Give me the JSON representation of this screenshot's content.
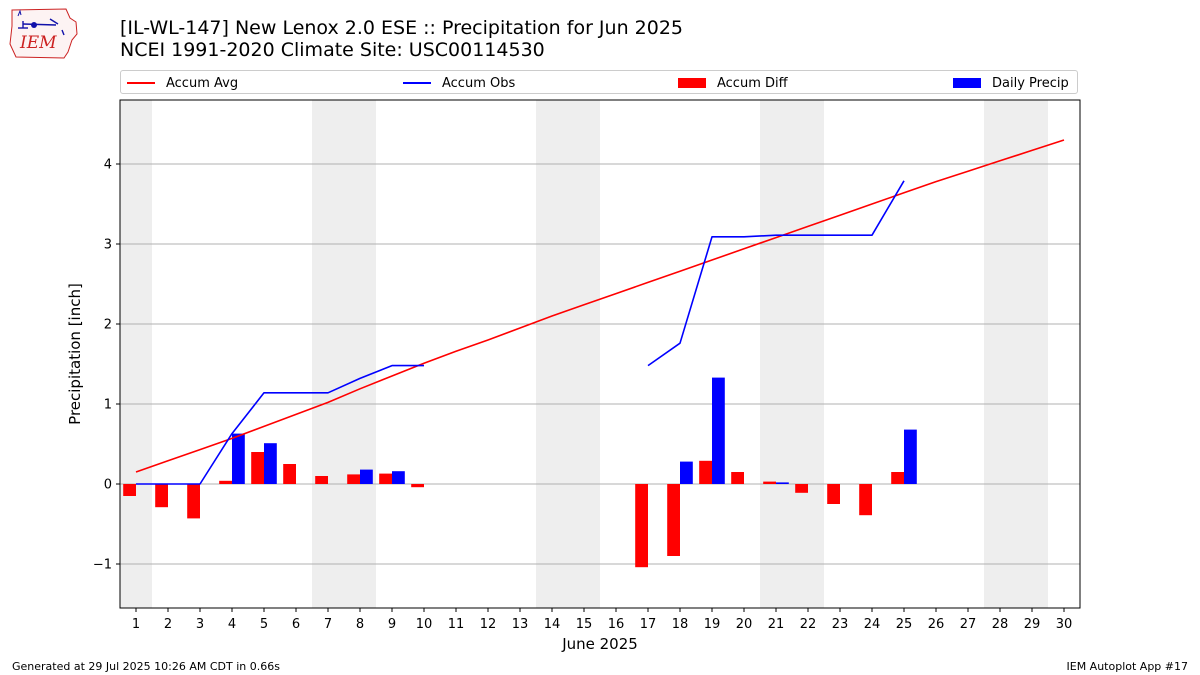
{
  "header": {
    "title": "[IL-WL-147] New Lenox 2.0 ESE :: Precipitation for Jun 2025",
    "subtitle": "NCEI 1991-2020 Climate Site: USC00114530",
    "logo_text": "IEM"
  },
  "footer": {
    "generated": "Generated at 29 Jul 2025 10:26 AM CDT in 0.66s",
    "app": "IEM Autoplot App #17"
  },
  "chart_data": {
    "type": "bar",
    "xlabel": "June 2025",
    "ylabel": "Precipitation [inch]",
    "xlim": [
      0.5,
      30.5
    ],
    "ylim": [
      -1.55,
      4.8
    ],
    "yticks": [
      -1,
      0,
      1,
      2,
      3,
      4
    ],
    "ytick_labels": [
      "−1",
      "0",
      "1",
      "2",
      "3",
      "4"
    ],
    "x": [
      1,
      2,
      3,
      4,
      5,
      6,
      7,
      8,
      9,
      10,
      11,
      12,
      13,
      14,
      15,
      16,
      17,
      18,
      19,
      20,
      21,
      22,
      23,
      24,
      25,
      26,
      27,
      28,
      29,
      30
    ],
    "x_tick_labels": [
      "1",
      "2",
      "3",
      "4",
      "5",
      "6",
      "7",
      "8",
      "9",
      "10",
      "11",
      "12",
      "13",
      "14",
      "15",
      "16",
      "17",
      "18",
      "19",
      "20",
      "21",
      "22",
      "23",
      "24",
      "25",
      "26",
      "27",
      "28",
      "29",
      "30"
    ],
    "weekend_days": [
      1,
      7,
      8,
      14,
      15,
      21,
      22,
      28,
      29
    ],
    "grid": "horizontal",
    "legend_position": "top",
    "series": [
      {
        "name": "Accum Avg",
        "kind": "line",
        "color": "#ff0000",
        "values": [
          0.15,
          0.29,
          0.43,
          0.57,
          0.72,
          0.87,
          1.02,
          1.19,
          1.35,
          1.51,
          1.66,
          1.8,
          1.95,
          2.1,
          2.24,
          2.38,
          2.52,
          2.66,
          2.8,
          2.94,
          3.08,
          3.22,
          3.36,
          3.5,
          3.64,
          3.78,
          3.91,
          4.04,
          4.17,
          4.3
        ]
      },
      {
        "name": "Accum Obs",
        "kind": "line",
        "color": "#0000ff",
        "values": [
          0.0,
          0.0,
          0.0,
          0.63,
          1.14,
          1.14,
          1.14,
          1.32,
          1.48,
          1.48,
          null,
          null,
          null,
          null,
          null,
          null,
          1.48,
          1.76,
          3.09,
          3.09,
          3.11,
          3.11,
          3.11,
          3.11,
          3.79,
          null,
          null,
          null,
          null,
          null
        ]
      },
      {
        "name": "Accum Diff",
        "kind": "bar",
        "color": "#ff0000",
        "values": [
          -0.15,
          -0.29,
          -0.43,
          0.04,
          0.4,
          0.25,
          0.1,
          0.12,
          0.13,
          -0.04,
          null,
          null,
          null,
          null,
          null,
          null,
          -1.04,
          -0.9,
          0.29,
          0.15,
          0.03,
          -0.11,
          -0.25,
          -0.39,
          0.15,
          null,
          null,
          null,
          null,
          null
        ]
      },
      {
        "name": "Daily Precip",
        "kind": "bar",
        "color": "#0000ff",
        "values": [
          0.0,
          0.0,
          0.0,
          0.63,
          0.51,
          0.0,
          0.0,
          0.18,
          0.16,
          0.0,
          null,
          null,
          null,
          null,
          null,
          null,
          null,
          0.28,
          1.33,
          0.0,
          0.02,
          0.0,
          0.0,
          0.0,
          0.68,
          null,
          null,
          null,
          null,
          null
        ]
      }
    ]
  }
}
